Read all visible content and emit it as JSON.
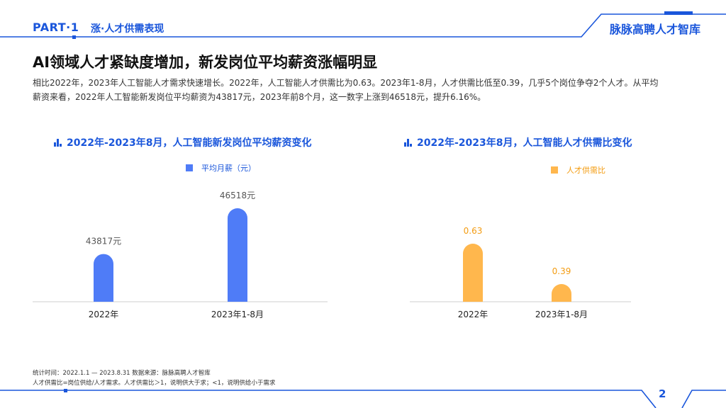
{
  "header": {
    "part_label": "PART·1",
    "section_label": "涨·人才供需表现",
    "brand": "脉脉高聘人才智库"
  },
  "page_title": "AI领域人才紧缺度增加，新发岗位平均薪资涨幅明显",
  "intro_line1": "相比2022年，2023年人工智能人才需求快速增长。2022年，人工智能人才供需比为0.63。2023年1-8月，人才供需比低至0.39，几乎5个岗位争夺2个人才。从平均",
  "intro_line2": "薪资来看，2022年人工智能新发岗位平均薪资为43817元，2023年前8个月，这一数字上涨到46518元，提升6.16%。",
  "colors": {
    "accent": "#1a56db",
    "salary_bar": "#4f7cf7",
    "ratio_bar": "#ffb74d",
    "ratio_text": "#f39c12"
  },
  "chart_data": [
    {
      "type": "bar",
      "title": "2022年-2023年8月，人工智能新发岗位平均薪资变化",
      "categories": [
        "2022年",
        "2023年1-8月"
      ],
      "series": [
        {
          "name": "平均月薪（元）",
          "values": [
            43817,
            46518
          ]
        }
      ],
      "data_labels": [
        "43817元",
        "46518元"
      ],
      "ylim": [
        0,
        50000
      ],
      "grid": false,
      "legend": "top-center"
    },
    {
      "type": "bar",
      "title": "2022年-2023年8月，人工智能人才供需比变化",
      "categories": [
        "2022年",
        "2023年1-8月"
      ],
      "series": [
        {
          "name": "人才供需比",
          "values": [
            0.63,
            0.39
          ]
        }
      ],
      "data_labels": [
        "0.63",
        "0.39"
      ],
      "ylim": [
        0,
        1.0
      ],
      "grid": false,
      "legend": "top-center"
    }
  ],
  "footer": {
    "line1": "统计时间：2022.1.1 — 2023.8.31   数据来源：脉脉高聘人才智库",
    "line2": "人才供需比=岗位供给/人才需求。人才供需比＞1，说明供大于求；<1，说明供给小于需求"
  },
  "page_number": "2"
}
